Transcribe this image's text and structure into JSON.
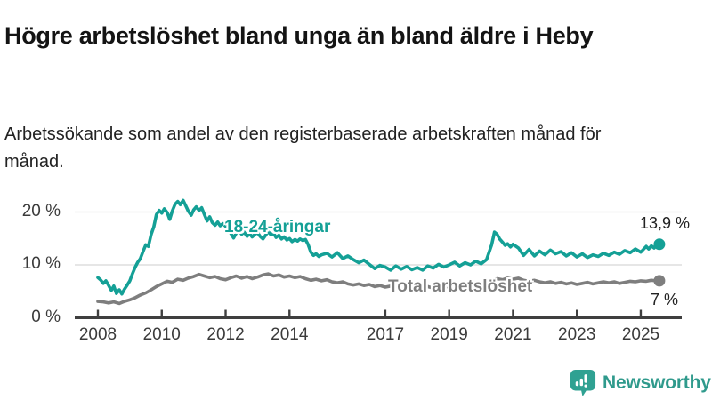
{
  "header": {
    "title": "Högre arbetslöshet bland unga än bland äldre i Heby",
    "subtitle": "Arbetssökande som andel av den registerbaserade arbetskraften månad för månad."
  },
  "branding": {
    "name": "Newsworthy",
    "icon": "newsworthy-bar-chart-bubble-icon",
    "color": "#2fa192"
  },
  "chart_data": {
    "type": "line",
    "title": "Högre arbetslöshet bland unga än bland äldre i Heby",
    "subtitle": "Arbetssökande som andel av den registerbaserade arbetskraften månad för månad.",
    "xlim": [
      2007.3,
      2026.3
    ],
    "ylim": [
      0,
      23
    ],
    "grid": "horizontal",
    "grid_color": "#d8d8d8",
    "axis_color": "#3f3f3f",
    "x_ticks": [
      2008,
      2010,
      2012,
      2014,
      2017,
      2019,
      2021,
      2023,
      2025
    ],
    "y_ticks": [
      {
        "value": 0,
        "label": "0 %"
      },
      {
        "value": 10,
        "label": "10 %"
      },
      {
        "value": 20,
        "label": "20 %"
      }
    ],
    "legend_position": "inline-labels",
    "series": [
      {
        "name": "18-24-åringar",
        "color": "#14a096",
        "end_value": 13.9,
        "end_label": "13,9 %",
        "points": [
          [
            2008.0,
            7.6
          ],
          [
            2008.08,
            7.2
          ],
          [
            2008.17,
            6.5
          ],
          [
            2008.25,
            7.0
          ],
          [
            2008.33,
            6.2
          ],
          [
            2008.42,
            5.2
          ],
          [
            2008.5,
            6.0
          ],
          [
            2008.58,
            4.6
          ],
          [
            2008.67,
            5.3
          ],
          [
            2008.75,
            4.5
          ],
          [
            2008.83,
            5.4
          ],
          [
            2008.92,
            6.2
          ],
          [
            2009.0,
            7.0
          ],
          [
            2009.08,
            8.3
          ],
          [
            2009.17,
            9.6
          ],
          [
            2009.25,
            10.5
          ],
          [
            2009.33,
            11.2
          ],
          [
            2009.42,
            12.6
          ],
          [
            2009.5,
            13.8
          ],
          [
            2009.58,
            13.5
          ],
          [
            2009.67,
            15.8
          ],
          [
            2009.75,
            17.2
          ],
          [
            2009.83,
            19.5
          ],
          [
            2009.92,
            20.3
          ],
          [
            2010.0,
            19.8
          ],
          [
            2010.08,
            20.6
          ],
          [
            2010.17,
            19.9
          ],
          [
            2010.25,
            18.6
          ],
          [
            2010.33,
            20.2
          ],
          [
            2010.42,
            21.5
          ],
          [
            2010.5,
            22.0
          ],
          [
            2010.58,
            21.4
          ],
          [
            2010.67,
            22.2
          ],
          [
            2010.75,
            21.2
          ],
          [
            2010.83,
            20.2
          ],
          [
            2010.92,
            19.4
          ],
          [
            2011.0,
            20.4
          ],
          [
            2011.08,
            21.0
          ],
          [
            2011.17,
            20.3
          ],
          [
            2011.25,
            20.8
          ],
          [
            2011.33,
            19.6
          ],
          [
            2011.42,
            18.3
          ],
          [
            2011.5,
            19.1
          ],
          [
            2011.58,
            18.0
          ],
          [
            2011.67,
            17.5
          ],
          [
            2011.75,
            18.1
          ],
          [
            2011.83,
            17.4
          ],
          [
            2011.92,
            17.8
          ],
          [
            2012.0,
            17.3
          ],
          [
            2012.08,
            16.6
          ],
          [
            2012.17,
            15.9
          ],
          [
            2012.25,
            15.1
          ],
          [
            2012.33,
            16.0
          ],
          [
            2012.42,
            16.5
          ],
          [
            2012.5,
            15.8
          ],
          [
            2012.58,
            16.2
          ],
          [
            2012.67,
            15.4
          ],
          [
            2012.75,
            15.9
          ],
          [
            2012.83,
            15.3
          ],
          [
            2012.92,
            15.8
          ],
          [
            2013.0,
            16.1
          ],
          [
            2013.08,
            15.4
          ],
          [
            2013.17,
            14.9
          ],
          [
            2013.25,
            15.6
          ],
          [
            2013.33,
            16.3
          ],
          [
            2013.42,
            15.7
          ],
          [
            2013.5,
            16.0
          ],
          [
            2013.58,
            15.2
          ],
          [
            2013.67,
            15.6
          ],
          [
            2013.75,
            14.9
          ],
          [
            2013.83,
            15.3
          ],
          [
            2013.92,
            14.7
          ],
          [
            2014.0,
            15.0
          ],
          [
            2014.08,
            14.4
          ],
          [
            2014.17,
            14.8
          ],
          [
            2014.25,
            14.5
          ],
          [
            2014.33,
            14.9
          ],
          [
            2014.42,
            14.6
          ],
          [
            2014.5,
            14.8
          ],
          [
            2014.58,
            13.9
          ],
          [
            2014.67,
            12.4
          ],
          [
            2014.75,
            11.8
          ],
          [
            2014.83,
            12.1
          ],
          [
            2014.92,
            11.6
          ],
          [
            2015.0,
            11.9
          ],
          [
            2015.17,
            12.2
          ],
          [
            2015.33,
            11.5
          ],
          [
            2015.5,
            12.3
          ],
          [
            2015.67,
            11.2
          ],
          [
            2015.83,
            11.7
          ],
          [
            2016.0,
            11.0
          ],
          [
            2016.17,
            10.4
          ],
          [
            2016.33,
            10.9
          ],
          [
            2016.5,
            10.1
          ],
          [
            2016.67,
            9.3
          ],
          [
            2016.83,
            9.9
          ],
          [
            2017.0,
            9.6
          ],
          [
            2017.17,
            9.0
          ],
          [
            2017.33,
            9.8
          ],
          [
            2017.5,
            9.2
          ],
          [
            2017.67,
            9.7
          ],
          [
            2017.83,
            9.1
          ],
          [
            2018.0,
            9.5
          ],
          [
            2018.17,
            9.0
          ],
          [
            2018.33,
            9.8
          ],
          [
            2018.5,
            9.4
          ],
          [
            2018.67,
            10.1
          ],
          [
            2018.83,
            9.6
          ],
          [
            2019.0,
            10.0
          ],
          [
            2019.17,
            10.5
          ],
          [
            2019.33,
            9.8
          ],
          [
            2019.5,
            10.4
          ],
          [
            2019.67,
            10.0
          ],
          [
            2019.83,
            10.7
          ],
          [
            2020.0,
            10.2
          ],
          [
            2020.17,
            11.0
          ],
          [
            2020.33,
            13.8
          ],
          [
            2020.42,
            16.2
          ],
          [
            2020.5,
            15.8
          ],
          [
            2020.58,
            14.9
          ],
          [
            2020.67,
            14.3
          ],
          [
            2020.75,
            13.7
          ],
          [
            2020.83,
            14.0
          ],
          [
            2020.92,
            13.4
          ],
          [
            2021.0,
            13.9
          ],
          [
            2021.17,
            13.2
          ],
          [
            2021.33,
            11.8
          ],
          [
            2021.5,
            12.9
          ],
          [
            2021.67,
            11.7
          ],
          [
            2021.83,
            12.6
          ],
          [
            2022.0,
            11.9
          ],
          [
            2022.17,
            12.8
          ],
          [
            2022.33,
            12.1
          ],
          [
            2022.5,
            12.5
          ],
          [
            2022.67,
            11.7
          ],
          [
            2022.83,
            12.3
          ],
          [
            2023.0,
            11.5
          ],
          [
            2023.17,
            12.1
          ],
          [
            2023.33,
            11.4
          ],
          [
            2023.5,
            11.9
          ],
          [
            2023.67,
            11.6
          ],
          [
            2023.83,
            12.2
          ],
          [
            2024.0,
            11.8
          ],
          [
            2024.17,
            12.4
          ],
          [
            2024.33,
            12.0
          ],
          [
            2024.5,
            12.7
          ],
          [
            2024.67,
            12.3
          ],
          [
            2024.83,
            13.0
          ],
          [
            2025.0,
            12.4
          ],
          [
            2025.17,
            13.5
          ],
          [
            2025.25,
            13.0
          ],
          [
            2025.33,
            13.6
          ],
          [
            2025.42,
            13.2
          ],
          [
            2025.5,
            13.9
          ]
        ]
      },
      {
        "name": "Total arbetslöshet",
        "color": "#7e7e7e",
        "end_value": 7.0,
        "end_label": "7 %",
        "points": [
          [
            2008.0,
            3.1
          ],
          [
            2008.17,
            3.0
          ],
          [
            2008.33,
            2.8
          ],
          [
            2008.5,
            3.0
          ],
          [
            2008.67,
            2.7
          ],
          [
            2008.83,
            3.1
          ],
          [
            2009.0,
            3.4
          ],
          [
            2009.17,
            3.8
          ],
          [
            2009.33,
            4.3
          ],
          [
            2009.5,
            4.7
          ],
          [
            2009.67,
            5.3
          ],
          [
            2009.83,
            5.9
          ],
          [
            2010.0,
            6.4
          ],
          [
            2010.17,
            6.9
          ],
          [
            2010.33,
            6.7
          ],
          [
            2010.5,
            7.3
          ],
          [
            2010.67,
            7.1
          ],
          [
            2010.83,
            7.5
          ],
          [
            2011.0,
            7.8
          ],
          [
            2011.17,
            8.2
          ],
          [
            2011.33,
            7.9
          ],
          [
            2011.5,
            7.6
          ],
          [
            2011.67,
            7.8
          ],
          [
            2011.83,
            7.4
          ],
          [
            2012.0,
            7.2
          ],
          [
            2012.17,
            7.6
          ],
          [
            2012.33,
            7.9
          ],
          [
            2012.5,
            7.5
          ],
          [
            2012.67,
            7.8
          ],
          [
            2012.83,
            7.4
          ],
          [
            2013.0,
            7.7
          ],
          [
            2013.17,
            8.1
          ],
          [
            2013.33,
            8.3
          ],
          [
            2013.5,
            7.9
          ],
          [
            2013.67,
            8.1
          ],
          [
            2013.83,
            7.7
          ],
          [
            2014.0,
            7.9
          ],
          [
            2014.17,
            7.6
          ],
          [
            2014.33,
            7.8
          ],
          [
            2014.5,
            7.4
          ],
          [
            2014.67,
            7.1
          ],
          [
            2014.83,
            7.3
          ],
          [
            2015.0,
            7.0
          ],
          [
            2015.17,
            7.2
          ],
          [
            2015.33,
            6.8
          ],
          [
            2015.5,
            6.6
          ],
          [
            2015.67,
            6.8
          ],
          [
            2015.83,
            6.4
          ],
          [
            2016.0,
            6.2
          ],
          [
            2016.17,
            6.4
          ],
          [
            2016.33,
            6.1
          ],
          [
            2016.5,
            6.3
          ],
          [
            2016.67,
            5.9
          ],
          [
            2016.83,
            6.1
          ],
          [
            2017.0,
            5.8
          ],
          [
            2017.17,
            6.0
          ],
          [
            2017.33,
            5.7
          ],
          [
            2017.5,
            5.9
          ],
          [
            2017.67,
            6.1
          ],
          [
            2017.83,
            5.8
          ],
          [
            2018.0,
            6.0
          ],
          [
            2018.17,
            5.7
          ],
          [
            2018.33,
            5.9
          ],
          [
            2018.5,
            5.6
          ],
          [
            2018.67,
            5.8
          ],
          [
            2018.83,
            6.0
          ],
          [
            2019.0,
            5.8
          ],
          [
            2019.17,
            6.0
          ],
          [
            2019.33,
            5.7
          ],
          [
            2019.5,
            5.9
          ],
          [
            2019.67,
            6.1
          ],
          [
            2019.83,
            5.8
          ],
          [
            2020.0,
            6.0
          ],
          [
            2020.17,
            6.4
          ],
          [
            2020.33,
            7.0
          ],
          [
            2020.5,
            7.4
          ],
          [
            2020.67,
            7.2
          ],
          [
            2020.83,
            7.5
          ],
          [
            2021.0,
            7.3
          ],
          [
            2021.17,
            7.5
          ],
          [
            2021.33,
            7.1
          ],
          [
            2021.5,
            6.9
          ],
          [
            2021.67,
            7.1
          ],
          [
            2021.83,
            6.8
          ],
          [
            2022.0,
            6.6
          ],
          [
            2022.17,
            6.8
          ],
          [
            2022.33,
            6.5
          ],
          [
            2022.5,
            6.7
          ],
          [
            2022.67,
            6.4
          ],
          [
            2022.83,
            6.6
          ],
          [
            2023.0,
            6.3
          ],
          [
            2023.17,
            6.5
          ],
          [
            2023.33,
            6.7
          ],
          [
            2023.5,
            6.4
          ],
          [
            2023.67,
            6.6
          ],
          [
            2023.83,
            6.8
          ],
          [
            2024.0,
            6.6
          ],
          [
            2024.17,
            6.8
          ],
          [
            2024.33,
            6.5
          ],
          [
            2024.5,
            6.7
          ],
          [
            2024.67,
            6.9
          ],
          [
            2024.83,
            6.8
          ],
          [
            2025.0,
            7.0
          ],
          [
            2025.17,
            6.9
          ],
          [
            2025.33,
            7.1
          ],
          [
            2025.5,
            7.0
          ]
        ]
      }
    ]
  }
}
